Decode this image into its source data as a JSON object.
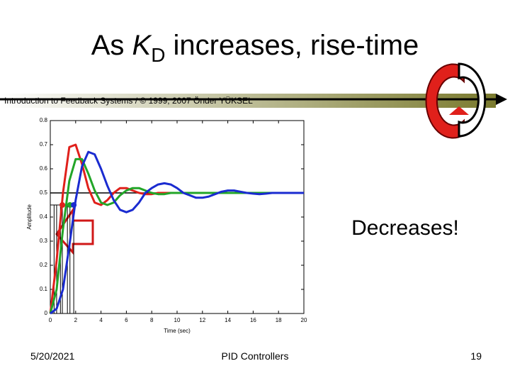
{
  "title": {
    "prefix": "As",
    "variable": "K",
    "subscript": "D",
    "suffix": "increases, rise-time"
  },
  "banner": "Introduction to Feedback Systems / © 1999, 2007 Önder YÜKSEL",
  "annotation": "Decreases!",
  "footer": {
    "date": "5/20/2021",
    "center": "PID Controllers",
    "page": "19"
  },
  "chart_data": {
    "type": "line",
    "xlabel": "Time (sec)",
    "ylabel": "Amplitude",
    "x": [
      0,
      0.5,
      1,
      1.5,
      2,
      2.5,
      3,
      3.5,
      4,
      4.5,
      5,
      5.5,
      6,
      6.5,
      7,
      7.5,
      8,
      8.5,
      9,
      9.5,
      10,
      10.5,
      11,
      11.5,
      12,
      12.5,
      13,
      13.5,
      14,
      14.5,
      15,
      15.5,
      16,
      16.5,
      17,
      17.5,
      18,
      18.5,
      19,
      19.5,
      20
    ],
    "series": [
      {
        "color": "#e0201b",
        "values": [
          0,
          0.22,
          0.5,
          0.69,
          0.7,
          0.62,
          0.52,
          0.46,
          0.45,
          0.47,
          0.5,
          0.52,
          0.52,
          0.51,
          0.5,
          0.495,
          0.495,
          0.5,
          0.5,
          0.5,
          0.5,
          0.5,
          0.5,
          0.5,
          0.5,
          0.5,
          0.5,
          0.5,
          0.5,
          0.5,
          0.5,
          0.5,
          0.5,
          0.5,
          0.5,
          0.5,
          0.5,
          0.5,
          0.5,
          0.5,
          0.5
        ]
      },
      {
        "color": "#22a528",
        "values": [
          0,
          0.1,
          0.35,
          0.55,
          0.64,
          0.64,
          0.58,
          0.51,
          0.46,
          0.45,
          0.46,
          0.49,
          0.51,
          0.52,
          0.52,
          0.51,
          0.5,
          0.495,
          0.495,
          0.5,
          0.5,
          0.5,
          0.5,
          0.5,
          0.5,
          0.5,
          0.5,
          0.5,
          0.5,
          0.5,
          0.5,
          0.5,
          0.5,
          0.5,
          0.5,
          0.5,
          0.5,
          0.5,
          0.5,
          0.5,
          0.5
        ]
      },
      {
        "color": "#1a2bd0",
        "values": [
          0,
          0.02,
          0.1,
          0.28,
          0.47,
          0.61,
          0.67,
          0.66,
          0.6,
          0.53,
          0.47,
          0.43,
          0.42,
          0.43,
          0.46,
          0.5,
          0.52,
          0.535,
          0.54,
          0.535,
          0.52,
          0.5,
          0.49,
          0.48,
          0.48,
          0.485,
          0.495,
          0.505,
          0.51,
          0.51,
          0.505,
          0.5,
          0.497,
          0.495,
          0.497,
          0.5,
          0.5,
          0.5,
          0.5,
          0.5,
          0.5
        ]
      }
    ],
    "reference_line": 0.5,
    "rise_level": 0.45,
    "rise_times": [
      0.3,
      0.5,
      0.8,
      0.95,
      1.35,
      1.55,
      1.85
    ],
    "marker_x": [
      0.95,
      1.55,
      1.85
    ],
    "xlim": [
      0,
      20
    ],
    "ylim": [
      0,
      0.8
    ],
    "xticks": [
      0,
      2,
      4,
      6,
      8,
      10,
      12,
      14,
      16,
      18,
      20
    ],
    "yticks": [
      0,
      0.1,
      0.2,
      0.3,
      0.4,
      0.5,
      0.6,
      0.7,
      0.8
    ]
  }
}
